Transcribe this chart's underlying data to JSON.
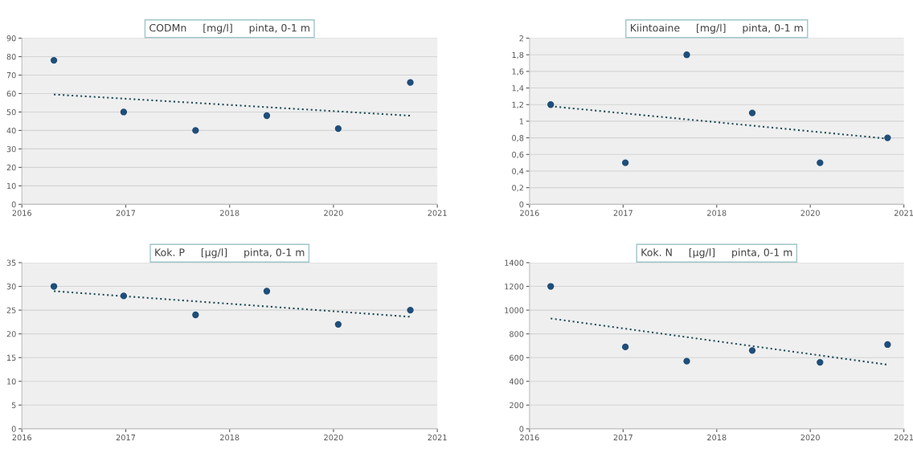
{
  "chart_data": [
    {
      "type": "scatter",
      "title": "CODMn     [mg/l]     pinta, 0-1 m",
      "xlim": [
        "2016-01-01",
        "2021-06-23"
      ],
      "xticks": [
        {
          "value": "2016-01-01",
          "label": "2016"
        },
        {
          "value": "2017-05-15",
          "label": "2017"
        },
        {
          "value": "2018-09-27",
          "label": "2018"
        },
        {
          "value": "2020-02-09",
          "label": "2020"
        },
        {
          "value": "2021-06-23",
          "label": "2021"
        }
      ],
      "ylim": [
        0,
        90
      ],
      "yticks": [
        0,
        10,
        20,
        30,
        40,
        50,
        60,
        70,
        80,
        90
      ],
      "grid": "y",
      "series": [
        {
          "color": "#1f4e79",
          "marker": "circle",
          "x": [
            "2016-06-03",
            "2017-05-05",
            "2018-04-16",
            "2019-03-25",
            "2020-03-03",
            "2021-02-13"
          ],
          "values": [
            78,
            50,
            40,
            48,
            41,
            66
          ]
        },
        {
          "type": "line",
          "color": "#1f4e5a",
          "line_style": "dotted",
          "x": [
            "2016-06-03",
            "2021-02-13"
          ],
          "values": [
            59.5,
            48
          ]
        }
      ]
    },
    {
      "type": "scatter",
      "title": "Kiintoaine     [mg/l]     pinta, 0-1 m",
      "xlim": [
        "2016-01-01",
        "2021-06-23"
      ],
      "xticks": [
        {
          "value": "2016-01-01",
          "label": "2016"
        },
        {
          "value": "2017-05-15",
          "label": "2017"
        },
        {
          "value": "2018-09-27",
          "label": "2018"
        },
        {
          "value": "2020-02-09",
          "label": "2020"
        },
        {
          "value": "2021-06-23",
          "label": "2021"
        }
      ],
      "ylim": [
        0,
        2
      ],
      "yticks": [
        0,
        {
          "value": 0.2,
          "label": "0,2"
        },
        {
          "value": 0.4,
          "label": "0,4"
        },
        {
          "value": 0.6,
          "label": "0,6"
        },
        {
          "value": 0.8,
          "label": "0,8"
        },
        1,
        {
          "value": 1.2,
          "label": "1,2"
        },
        {
          "value": 1.4,
          "label": "1,4"
        },
        {
          "value": 1.6,
          "label": "1,6"
        },
        {
          "value": 1.8,
          "label": "1,8"
        },
        2
      ],
      "grid": "y",
      "series": [
        {
          "color": "#1f4e79",
          "marker": "circle",
          "x": [
            "2016-04-23",
            "2017-05-27",
            "2018-04-20",
            "2019-04-05",
            "2020-04-01",
            "2021-03-28"
          ],
          "values": [
            1.2,
            0.5,
            1.8,
            1.1,
            0.5,
            0.8
          ]
        },
        {
          "type": "line",
          "color": "#1f4e5a",
          "line_style": "dotted",
          "x": [
            "2016-04-23",
            "2021-03-28"
          ],
          "values": [
            1.18,
            0.79
          ]
        }
      ]
    },
    {
      "type": "scatter",
      "title": "Kok. P     [µg/l]     pinta, 0-1 m",
      "xlim": [
        "2016-01-01",
        "2021-06-23"
      ],
      "xticks": [
        {
          "value": "2016-01-01",
          "label": "2016"
        },
        {
          "value": "2017-05-15",
          "label": "2017"
        },
        {
          "value": "2018-09-27",
          "label": "2018"
        },
        {
          "value": "2020-02-09",
          "label": "2020"
        },
        {
          "value": "2021-06-23",
          "label": "2021"
        }
      ],
      "ylim": [
        0,
        35
      ],
      "yticks": [
        0,
        5,
        10,
        15,
        20,
        25,
        30,
        35
      ],
      "grid": "y",
      "series": [
        {
          "color": "#1f4e79",
          "marker": "circle",
          "x": [
            "2016-06-03",
            "2017-05-05",
            "2018-04-16",
            "2019-03-25",
            "2020-03-03",
            "2021-02-13"
          ],
          "values": [
            30,
            28,
            24,
            29,
            22,
            25
          ]
        },
        {
          "type": "line",
          "color": "#1f4e5a",
          "line_style": "dotted",
          "x": [
            "2016-06-03",
            "2021-02-13"
          ],
          "values": [
            29,
            23.6
          ]
        }
      ]
    },
    {
      "type": "scatter",
      "title": "Kok. N     [µg/l]     pinta, 0-1 m",
      "xlim": [
        "2016-01-01",
        "2021-06-23"
      ],
      "xticks": [
        {
          "value": "2016-01-01",
          "label": "2016"
        },
        {
          "value": "2017-05-15",
          "label": "2017"
        },
        {
          "value": "2018-09-27",
          "label": "2018"
        },
        {
          "value": "2020-02-09",
          "label": "2020"
        },
        {
          "value": "2021-06-23",
          "label": "2021"
        }
      ],
      "ylim": [
        0,
        1400
      ],
      "yticks": [
        0,
        200,
        400,
        600,
        800,
        1000,
        1200,
        1400
      ],
      "grid": "y",
      "series": [
        {
          "color": "#1f4e79",
          "marker": "circle",
          "x": [
            "2016-04-23",
            "2017-05-27",
            "2018-04-20",
            "2019-04-05",
            "2020-04-01",
            "2021-03-28"
          ],
          "values": [
            1200,
            690,
            570,
            660,
            560,
            710
          ]
        },
        {
          "type": "line",
          "color": "#1f4e5a",
          "line_style": "dotted",
          "x": [
            "2016-04-23",
            "2021-03-28"
          ],
          "values": [
            930,
            540
          ]
        }
      ]
    }
  ]
}
